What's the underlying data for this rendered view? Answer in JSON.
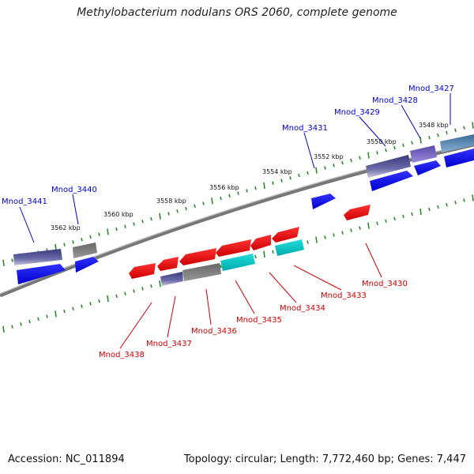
{
  "title": "Methylobacterium nodulans ORS 2060, complete genome",
  "footer": {
    "accession": "Accession: NC_011894",
    "summary": "Topology: circular; Length: 7,772,460 bp; Genes: 7,447"
  },
  "colors": {
    "forward": "#0000ee",
    "reverse": "#ee0000",
    "other": "#777777",
    "cyan": "#00cccc",
    "slate": "#4a4a8a",
    "backbone": "#888888",
    "tick": "#2a8a2a"
  },
  "scale_labels": [
    "3548 kbp",
    "3550 kbp",
    "3552 kbp",
    "3554 kbp",
    "3556 kbp",
    "3558 kbp",
    "3560 kbp",
    "3562 kbp"
  ],
  "forward_labels": [
    "Mnod_3427",
    "Mnod_3428",
    "Mnod_3429",
    "Mnod_3431",
    "Mnod_3440",
    "Mnod_3441"
  ],
  "reverse_labels": [
    "Mnod_3430",
    "Mnod_3433",
    "Mnod_3434",
    "Mnod_3435",
    "Mnod_3436",
    "Mnod_3437",
    "Mnod_3438"
  ]
}
